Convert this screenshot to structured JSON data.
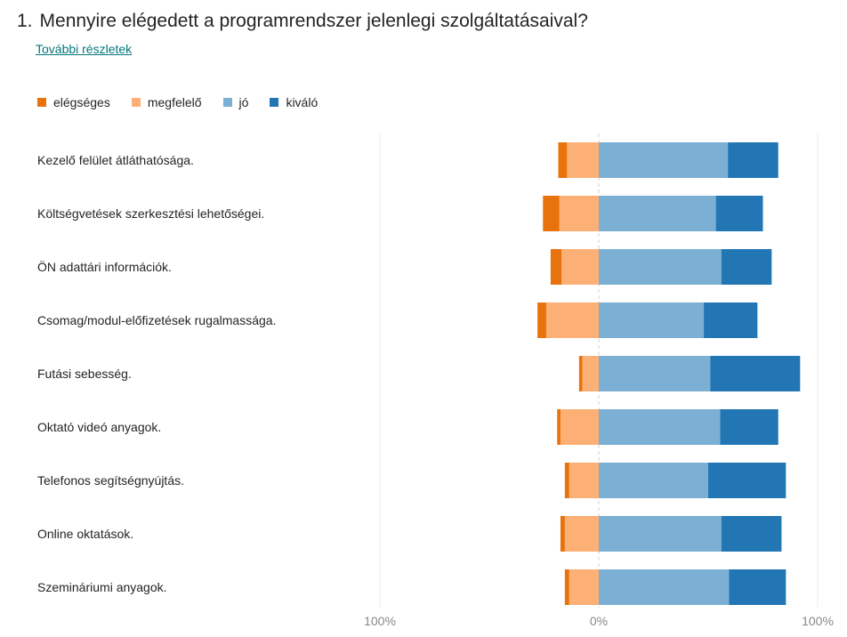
{
  "question": {
    "number": "1.",
    "text": "Mennyire elégedett a programrendszer jelenlegi szolgáltatásaival?"
  },
  "details_link": "További részletek",
  "legend": [
    {
      "label": "elégséges",
      "color": "#e8730c"
    },
    {
      "label": "megfelelő",
      "color": "#fdb076"
    },
    {
      "label": "jó",
      "color": "#7bafd4"
    },
    {
      "label": "kiváló",
      "color": "#2276b4"
    }
  ],
  "chart_data": {
    "type": "bar",
    "subtype": "diverging-stacked-horizontal",
    "categories": [
      "Kezelő felület átláthatósága.",
      "Költségvetések szerkesztési lehetőségei.",
      "ÖN adattári információk.",
      "Csomag/modul-előfizetések rugalmassága.",
      "Futási sebesség.",
      "Oktató videó anyagok.",
      "Telefonos segítségnyújtás.",
      "Online oktatások.",
      "Szemináriumi anyagok."
    ],
    "series": [
      {
        "name": "elégséges",
        "color": "#e8730c",
        "side": "negative",
        "values": [
          4,
          7.5,
          5,
          4,
          1.5,
          1.5,
          2,
          2,
          2
        ]
      },
      {
        "name": "megfelelő",
        "color": "#fdb076",
        "side": "negative",
        "values": [
          14.5,
          18,
          17,
          24,
          7.5,
          17.5,
          13.5,
          15.5,
          13.5
        ]
      },
      {
        "name": "jó",
        "color": "#7bafd4",
        "side": "positive",
        "values": [
          59,
          53.5,
          56,
          48,
          51,
          55.5,
          50,
          56,
          59.5
        ]
      },
      {
        "name": "kiváló",
        "color": "#2276b4",
        "side": "positive",
        "values": [
          23,
          21.5,
          23,
          24.5,
          41,
          26.5,
          35.5,
          27.5,
          26
        ]
      }
    ],
    "xlim": [
      -100,
      100
    ],
    "x_ticks": [
      "100%",
      "0%",
      "100%"
    ],
    "legend_position": "top-left"
  }
}
